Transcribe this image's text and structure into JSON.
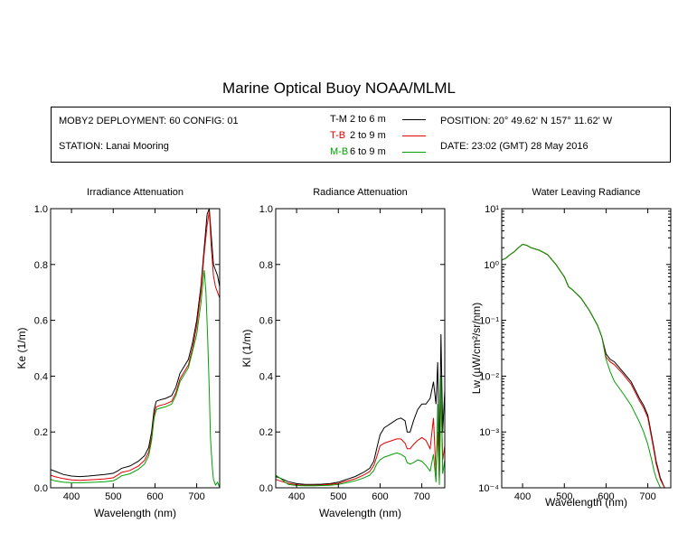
{
  "title": "Marine Optical Buoy NOAA/MLML",
  "info": {
    "deployment": "MOBY2 DEPLOYMENT: 60 CONFIG: 01",
    "station": "STATION: Lanai Mooring",
    "position": "POSITION: 20° 49.62' N  157° 11.62' W",
    "date": "DATE: 23:02 (GMT) 28 May 2016"
  },
  "legend": [
    {
      "id": "T-M",
      "range": "2 to 6  m",
      "color": "#000000"
    },
    {
      "id": "T-B",
      "range": "2 to 9  m",
      "color": "#e00000"
    },
    {
      "id": "M-B",
      "range": "6 to 9  m",
      "color": "#00a000"
    }
  ],
  "chart_data": [
    {
      "type": "line",
      "title": "Irradiance Attenuation",
      "xlabel": "Wavelength (nm)",
      "ylabel": "Ke  (1/m)",
      "xlim": [
        350,
        755
      ],
      "ylim": [
        0,
        1.0
      ],
      "xticks": [
        400,
        500,
        600,
        700
      ],
      "yticks": [
        0.0,
        0.2,
        0.4,
        0.6,
        0.8,
        1.0
      ],
      "ytick_labels": [
        "0.0",
        "0.2",
        "0.4",
        "0.6",
        "0.8",
        "1.0"
      ],
      "series": [
        {
          "name": "T-M",
          "color": "#000000",
          "x": [
            350,
            360,
            380,
            400,
            420,
            440,
            460,
            480,
            500,
            510,
            520,
            540,
            560,
            575,
            585,
            592,
            598,
            603,
            612,
            625,
            640,
            650,
            660,
            668,
            680,
            690,
            700,
            710,
            718,
            725,
            730,
            735,
            740,
            745,
            750,
            755
          ],
          "y": [
            0.065,
            0.06,
            0.048,
            0.042,
            0.04,
            0.042,
            0.045,
            0.048,
            0.052,
            0.06,
            0.07,
            0.078,
            0.095,
            0.115,
            0.145,
            0.2,
            0.28,
            0.31,
            0.315,
            0.32,
            0.33,
            0.36,
            0.41,
            0.43,
            0.46,
            0.52,
            0.6,
            0.72,
            0.86,
            0.98,
            1.0,
            0.9,
            0.8,
            0.78,
            0.76,
            0.72
          ]
        },
        {
          "name": "T-B",
          "color": "#e00000",
          "x": [
            350,
            360,
            380,
            400,
            420,
            440,
            460,
            480,
            500,
            510,
            520,
            540,
            560,
            575,
            585,
            592,
            598,
            603,
            612,
            625,
            640,
            650,
            660,
            668,
            680,
            690,
            700,
            710,
            718,
            725,
            730,
            735,
            740,
            745,
            750,
            755
          ],
          "y": [
            0.045,
            0.04,
            0.033,
            0.028,
            0.027,
            0.028,
            0.03,
            0.032,
            0.036,
            0.045,
            0.055,
            0.062,
            0.078,
            0.098,
            0.128,
            0.18,
            0.26,
            0.29,
            0.295,
            0.3,
            0.31,
            0.34,
            0.39,
            0.41,
            0.44,
            0.5,
            0.58,
            0.7,
            0.84,
            0.94,
            0.99,
            0.86,
            0.76,
            0.72,
            0.7,
            0.68
          ]
        },
        {
          "name": "M-B",
          "color": "#00a000",
          "x": [
            350,
            360,
            380,
            400,
            420,
            440,
            460,
            480,
            500,
            510,
            520,
            540,
            560,
            575,
            585,
            592,
            598,
            603,
            612,
            625,
            640,
            650,
            660,
            668,
            680,
            690,
            700,
            710,
            718,
            722,
            726,
            730,
            733,
            737,
            740,
            745,
            750,
            755
          ],
          "y": [
            0.03,
            0.025,
            0.02,
            0.018,
            0.018,
            0.019,
            0.02,
            0.022,
            0.025,
            0.033,
            0.043,
            0.05,
            0.066,
            0.085,
            0.115,
            0.17,
            0.25,
            0.28,
            0.285,
            0.29,
            0.3,
            0.33,
            0.38,
            0.4,
            0.43,
            0.49,
            0.55,
            0.66,
            0.78,
            0.7,
            0.55,
            0.35,
            0.18,
            0.08,
            0.03,
            0.01,
            0.02,
            0.0
          ]
        }
      ]
    },
    {
      "type": "line",
      "title": "Radiance Attenuation",
      "xlabel": "Wavelength (nm)",
      "ylabel": "Kl  (1/m)",
      "xlim": [
        350,
        755
      ],
      "ylim": [
        0,
        1.0
      ],
      "xticks": [
        400,
        500,
        600,
        700
      ],
      "yticks": [
        0.0,
        0.2,
        0.4,
        0.6,
        0.8,
        1.0
      ],
      "ytick_labels": [
        "0.0",
        "0.2",
        "0.4",
        "0.6",
        "0.8",
        "1.0"
      ],
      "series": [
        {
          "name": "T-M",
          "color": "#000000",
          "x": [
            350,
            360,
            380,
            400,
            420,
            440,
            460,
            480,
            500,
            520,
            540,
            560,
            575,
            585,
            592,
            600,
            610,
            620,
            630,
            640,
            650,
            660,
            665,
            672,
            680,
            690,
            700,
            710,
            720,
            728,
            734,
            738,
            742,
            746,
            750,
            755
          ],
          "y": [
            0.04,
            0.035,
            0.022,
            0.015,
            0.012,
            0.012,
            0.013,
            0.015,
            0.02,
            0.03,
            0.04,
            0.055,
            0.07,
            0.095,
            0.14,
            0.19,
            0.215,
            0.225,
            0.235,
            0.245,
            0.25,
            0.24,
            0.2,
            0.2,
            0.24,
            0.28,
            0.3,
            0.3,
            0.32,
            0.38,
            0.3,
            0.45,
            0.1,
            0.55,
            0.2,
            0.35
          ]
        },
        {
          "name": "T-B",
          "color": "#e00000",
          "x": [
            350,
            360,
            380,
            400,
            420,
            440,
            460,
            480,
            500,
            520,
            540,
            560,
            575,
            585,
            592,
            600,
            610,
            620,
            630,
            640,
            650,
            660,
            665,
            672,
            680,
            690,
            700,
            710,
            720,
            728,
            734,
            738,
            742,
            746,
            750,
            755
          ],
          "y": [
            0.03,
            0.025,
            0.016,
            0.011,
            0.009,
            0.009,
            0.01,
            0.012,
            0.016,
            0.024,
            0.032,
            0.045,
            0.058,
            0.08,
            0.11,
            0.15,
            0.16,
            0.165,
            0.17,
            0.175,
            0.175,
            0.16,
            0.14,
            0.14,
            0.155,
            0.17,
            0.18,
            0.17,
            0.14,
            0.25,
            0.05,
            0.2,
            0.03,
            0.35,
            0.1,
            0.15
          ]
        },
        {
          "name": "M-B",
          "color": "#00a000",
          "x": [
            350,
            360,
            380,
            400,
            420,
            440,
            460,
            480,
            500,
            520,
            540,
            560,
            575,
            585,
            592,
            600,
            610,
            620,
            630,
            640,
            650,
            660,
            665,
            672,
            680,
            690,
            700,
            710,
            720,
            728,
            734,
            738,
            742,
            746,
            750,
            755
          ],
          "y": [
            0.045,
            0.035,
            0.012,
            0.008,
            0.007,
            0.007,
            0.008,
            0.009,
            0.012,
            0.018,
            0.025,
            0.035,
            0.045,
            0.062,
            0.085,
            0.1,
            0.11,
            0.115,
            0.12,
            0.125,
            0.12,
            0.11,
            0.09,
            0.085,
            0.09,
            0.1,
            0.095,
            0.08,
            0.06,
            0.12,
            0.02,
            0.3,
            0.01,
            0.4,
            0.05,
            0.1
          ]
        }
      ]
    },
    {
      "type": "line",
      "title": "Water Leaving Radiance",
      "xlabel": "Wavelength (nm)",
      "ylabel": "Lw  (µW/cm²/sr/nm)",
      "xlim": [
        350,
        755
      ],
      "ylim": [
        0.0001,
        10
      ],
      "yscale": "log",
      "xticks": [
        400,
        500,
        600,
        700
      ],
      "yticks": [
        10,
        1,
        0.1,
        0.01,
        0.001,
        0.0001
      ],
      "ytick_labels": [
        "10¹",
        "10⁰",
        "10⁻¹",
        "10⁻²",
        "10⁻³",
        "10⁻⁴"
      ],
      "series": [
        {
          "name": "T-M",
          "color": "#000000",
          "x": [
            350,
            360,
            370,
            380,
            390,
            400,
            410,
            420,
            440,
            460,
            480,
            500,
            510,
            520,
            540,
            560,
            580,
            590,
            600,
            610,
            620,
            640,
            660,
            680,
            690,
            700,
            710,
            715,
            720,
            730,
            740
          ],
          "y": [
            1.2,
            1.3,
            1.5,
            1.7,
            2.0,
            2.3,
            2.2,
            2.0,
            1.8,
            1.5,
            1.0,
            0.6,
            0.4,
            0.35,
            0.25,
            0.15,
            0.08,
            0.05,
            0.025,
            0.02,
            0.018,
            0.012,
            0.008,
            0.004,
            0.003,
            0.002,
            0.0008,
            0.0005,
            0.0003,
            0.00015,
            0.0001
          ]
        },
        {
          "name": "T-B",
          "color": "#e00000",
          "x": [
            350,
            360,
            370,
            380,
            390,
            400,
            410,
            420,
            440,
            460,
            480,
            500,
            510,
            520,
            540,
            560,
            580,
            590,
            600,
            610,
            620,
            640,
            660,
            680,
            690,
            700,
            710,
            715,
            720,
            730,
            740
          ],
          "y": [
            1.2,
            1.3,
            1.5,
            1.7,
            2.0,
            2.3,
            2.2,
            2.0,
            1.8,
            1.5,
            1.0,
            0.6,
            0.4,
            0.35,
            0.25,
            0.15,
            0.08,
            0.05,
            0.022,
            0.018,
            0.016,
            0.011,
            0.0072,
            0.0036,
            0.0027,
            0.0018,
            0.00072,
            0.00045,
            0.00027,
            0.00014,
            0.0001
          ]
        },
        {
          "name": "M-B",
          "color": "#00a000",
          "x": [
            350,
            360,
            370,
            380,
            390,
            400,
            410,
            420,
            440,
            460,
            480,
            500,
            510,
            520,
            540,
            560,
            580,
            590,
            600,
            610,
            620,
            640,
            660,
            680,
            690,
            700,
            710,
            715,
            720,
            730,
            740
          ],
          "y": [
            1.2,
            1.3,
            1.5,
            1.7,
            2.0,
            2.3,
            2.2,
            2.0,
            1.8,
            1.5,
            1.0,
            0.6,
            0.4,
            0.35,
            0.25,
            0.15,
            0.08,
            0.05,
            0.02,
            0.012,
            0.008,
            0.005,
            0.003,
            0.0015,
            0.001,
            0.0006,
            0.0003,
            0.0002,
            0.00015,
            0.0001,
            0.0001
          ]
        }
      ]
    }
  ]
}
